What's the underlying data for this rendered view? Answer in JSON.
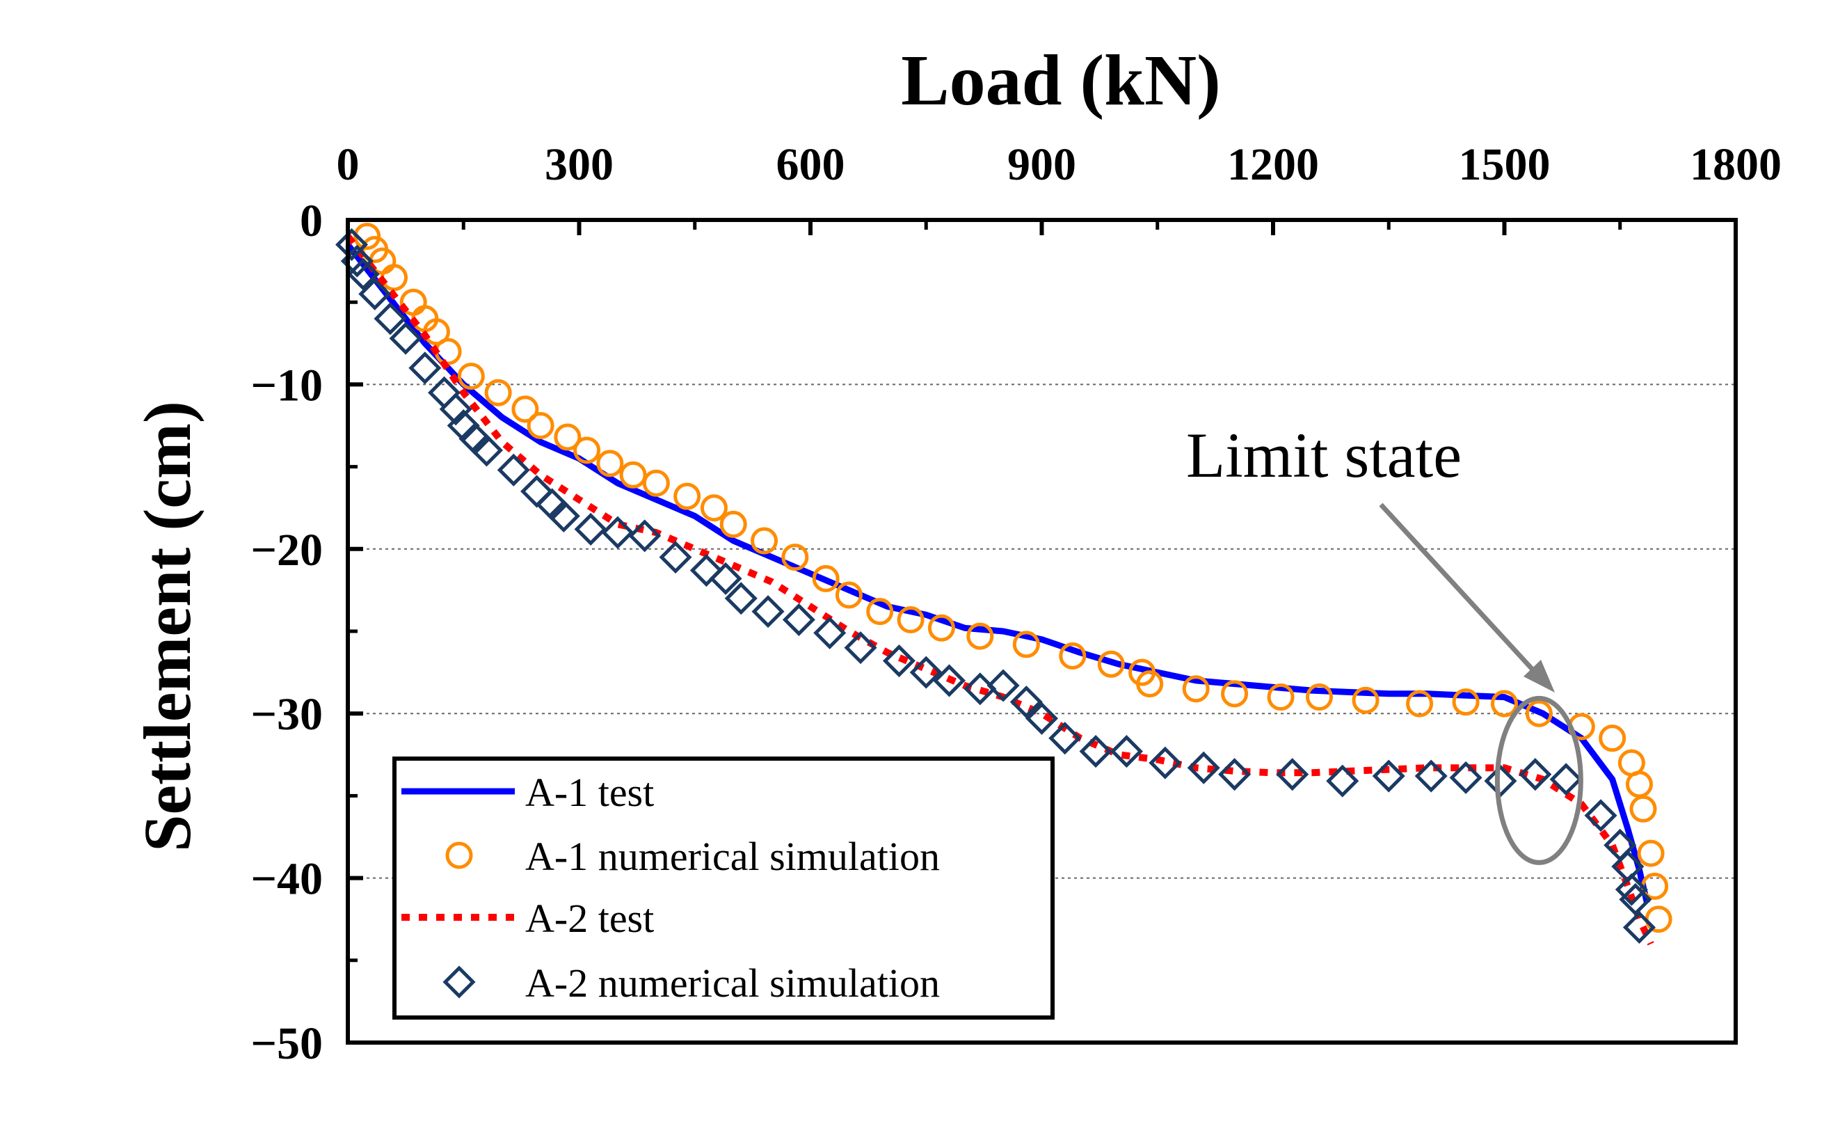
{
  "chart_data": {
    "type": "line",
    "xlabel": "Load (kN)",
    "ylabel": "Settlement (cm)",
    "xlim": [
      0,
      1800
    ],
    "ylim": [
      -50,
      0
    ],
    "xticks": [
      0,
      300,
      600,
      900,
      1200,
      1500,
      1800
    ],
    "yticks": [
      0,
      -10,
      -20,
      -30,
      -40,
      -50
    ],
    "x_tick_labels": [
      "0",
      "300",
      "600",
      "900",
      "1200",
      "1500",
      "1800"
    ],
    "y_tick_labels": [
      "0",
      "−10",
      "−20",
      "−30",
      "−40",
      "−50"
    ],
    "grid": "horizontal dotted at -10, -20, -30, -40",
    "x_axis_position": "top",
    "legend_position": "bottom-left",
    "annotation": {
      "text": "Limit state",
      "target_load": 1545,
      "target_settlement": -35
    },
    "series": [
      {
        "name": "A-1 test",
        "style": "solid-line",
        "color": "#0000ff",
        "x": [
          0,
          50,
          100,
          150,
          200,
          250,
          300,
          350,
          400,
          450,
          500,
          550,
          600,
          650,
          700,
          750,
          800,
          850,
          900,
          950,
          1000,
          1050,
          1100,
          1150,
          1200,
          1250,
          1300,
          1350,
          1400,
          1450,
          1500,
          1550,
          1600,
          1640,
          1660,
          1675,
          1685
        ],
        "y": [
          -1.5,
          -4.5,
          -7.5,
          -10,
          -12,
          -13.5,
          -14.5,
          -16,
          -17,
          -18,
          -19.5,
          -20.5,
          -21.5,
          -22.5,
          -23.5,
          -24,
          -24.8,
          -25,
          -25.5,
          -26.3,
          -27,
          -27.5,
          -28,
          -28.2,
          -28.4,
          -28.6,
          -28.7,
          -28.8,
          -28.8,
          -28.9,
          -29,
          -30,
          -31.5,
          -34,
          -37,
          -39.5,
          -41.5
        ]
      },
      {
        "name": "A-1 numerical simulation",
        "style": "circle-markers",
        "color": "#ff8c00",
        "x": [
          25,
          35,
          45,
          60,
          85,
          100,
          115,
          130,
          160,
          195,
          230,
          250,
          285,
          310,
          340,
          370,
          400,
          440,
          475,
          500,
          540,
          580,
          620,
          650,
          690,
          730,
          770,
          820,
          880,
          940,
          990,
          1030,
          1040,
          1100,
          1150,
          1210,
          1260,
          1320,
          1390,
          1450,
          1500,
          1545,
          1600,
          1640,
          1665,
          1675,
          1680,
          1690,
          1695,
          1700
        ],
        "y": [
          -1,
          -1.8,
          -2.5,
          -3.5,
          -5,
          -6,
          -6.8,
          -8,
          -9.5,
          -10.5,
          -11.5,
          -12.5,
          -13.2,
          -14,
          -14.8,
          -15.5,
          -16,
          -16.8,
          -17.5,
          -18.5,
          -19.5,
          -20.5,
          -21.8,
          -22.8,
          -23.8,
          -24.3,
          -24.8,
          -25.3,
          -25.8,
          -26.5,
          -27,
          -27.5,
          -28.2,
          -28.5,
          -28.8,
          -29,
          -29,
          -29.2,
          -29.4,
          -29.3,
          -29.4,
          -30,
          -30.8,
          -31.5,
          -33,
          -34.3,
          -35.8,
          -38.5,
          -40.5,
          -42.5
        ]
      },
      {
        "name": "A-2 test",
        "style": "dotted-line",
        "color": "#ff0000",
        "x": [
          0,
          50,
          100,
          150,
          200,
          250,
          300,
          350,
          400,
          450,
          500,
          550,
          600,
          650,
          700,
          750,
          800,
          850,
          900,
          950,
          1000,
          1050,
          1100,
          1150,
          1200,
          1250,
          1300,
          1350,
          1400,
          1450,
          1500,
          1550,
          1600,
          1640,
          1660,
          1675,
          1690
        ],
        "y": [
          -1,
          -4,
          -7,
          -10.5,
          -13.5,
          -15.5,
          -17,
          -18.5,
          -19,
          -20,
          -21,
          -22,
          -23.5,
          -25,
          -26.3,
          -27.3,
          -28.3,
          -29,
          -30,
          -31.5,
          -32.5,
          -32.8,
          -33.3,
          -33.5,
          -33.6,
          -33.6,
          -33.5,
          -33.4,
          -33.3,
          -33.3,
          -33.3,
          -34,
          -35.5,
          -38,
          -40.5,
          -42.5,
          -44
        ]
      },
      {
        "name": "A-2 numerical simulation",
        "style": "diamond-markers",
        "color": "#1b3a63",
        "x": [
          5,
          12,
          20,
          35,
          55,
          75,
          100,
          125,
          140,
          150,
          165,
          180,
          215,
          245,
          265,
          280,
          315,
          350,
          385,
          425,
          465,
          490,
          510,
          545,
          585,
          625,
          665,
          715,
          750,
          780,
          820,
          850,
          880,
          900,
          930,
          970,
          1010,
          1060,
          1110,
          1150,
          1225,
          1290,
          1350,
          1405,
          1450,
          1495,
          1540,
          1580,
          1625,
          1650,
          1660,
          1665,
          1670,
          1675
        ],
        "y": [
          -1.5,
          -2.5,
          -3.3,
          -4.5,
          -6,
          -7.2,
          -9,
          -10.5,
          -11.5,
          -12.5,
          -13.3,
          -14,
          -15.2,
          -16.5,
          -17.3,
          -18,
          -18.8,
          -19,
          -19.2,
          -20.5,
          -21.3,
          -21.8,
          -23,
          -23.8,
          -24.3,
          -25.1,
          -26,
          -26.8,
          -27.5,
          -28,
          -28.5,
          -28.3,
          -29.3,
          -30.3,
          -31.5,
          -32.3,
          -32.3,
          -33,
          -33.3,
          -33.7,
          -33.7,
          -34.1,
          -33.8,
          -33.8,
          -33.9,
          -34.1,
          -33.7,
          -34,
          -36.2,
          -38,
          -39.3,
          -40.7,
          -41.3,
          -43
        ]
      }
    ]
  }
}
